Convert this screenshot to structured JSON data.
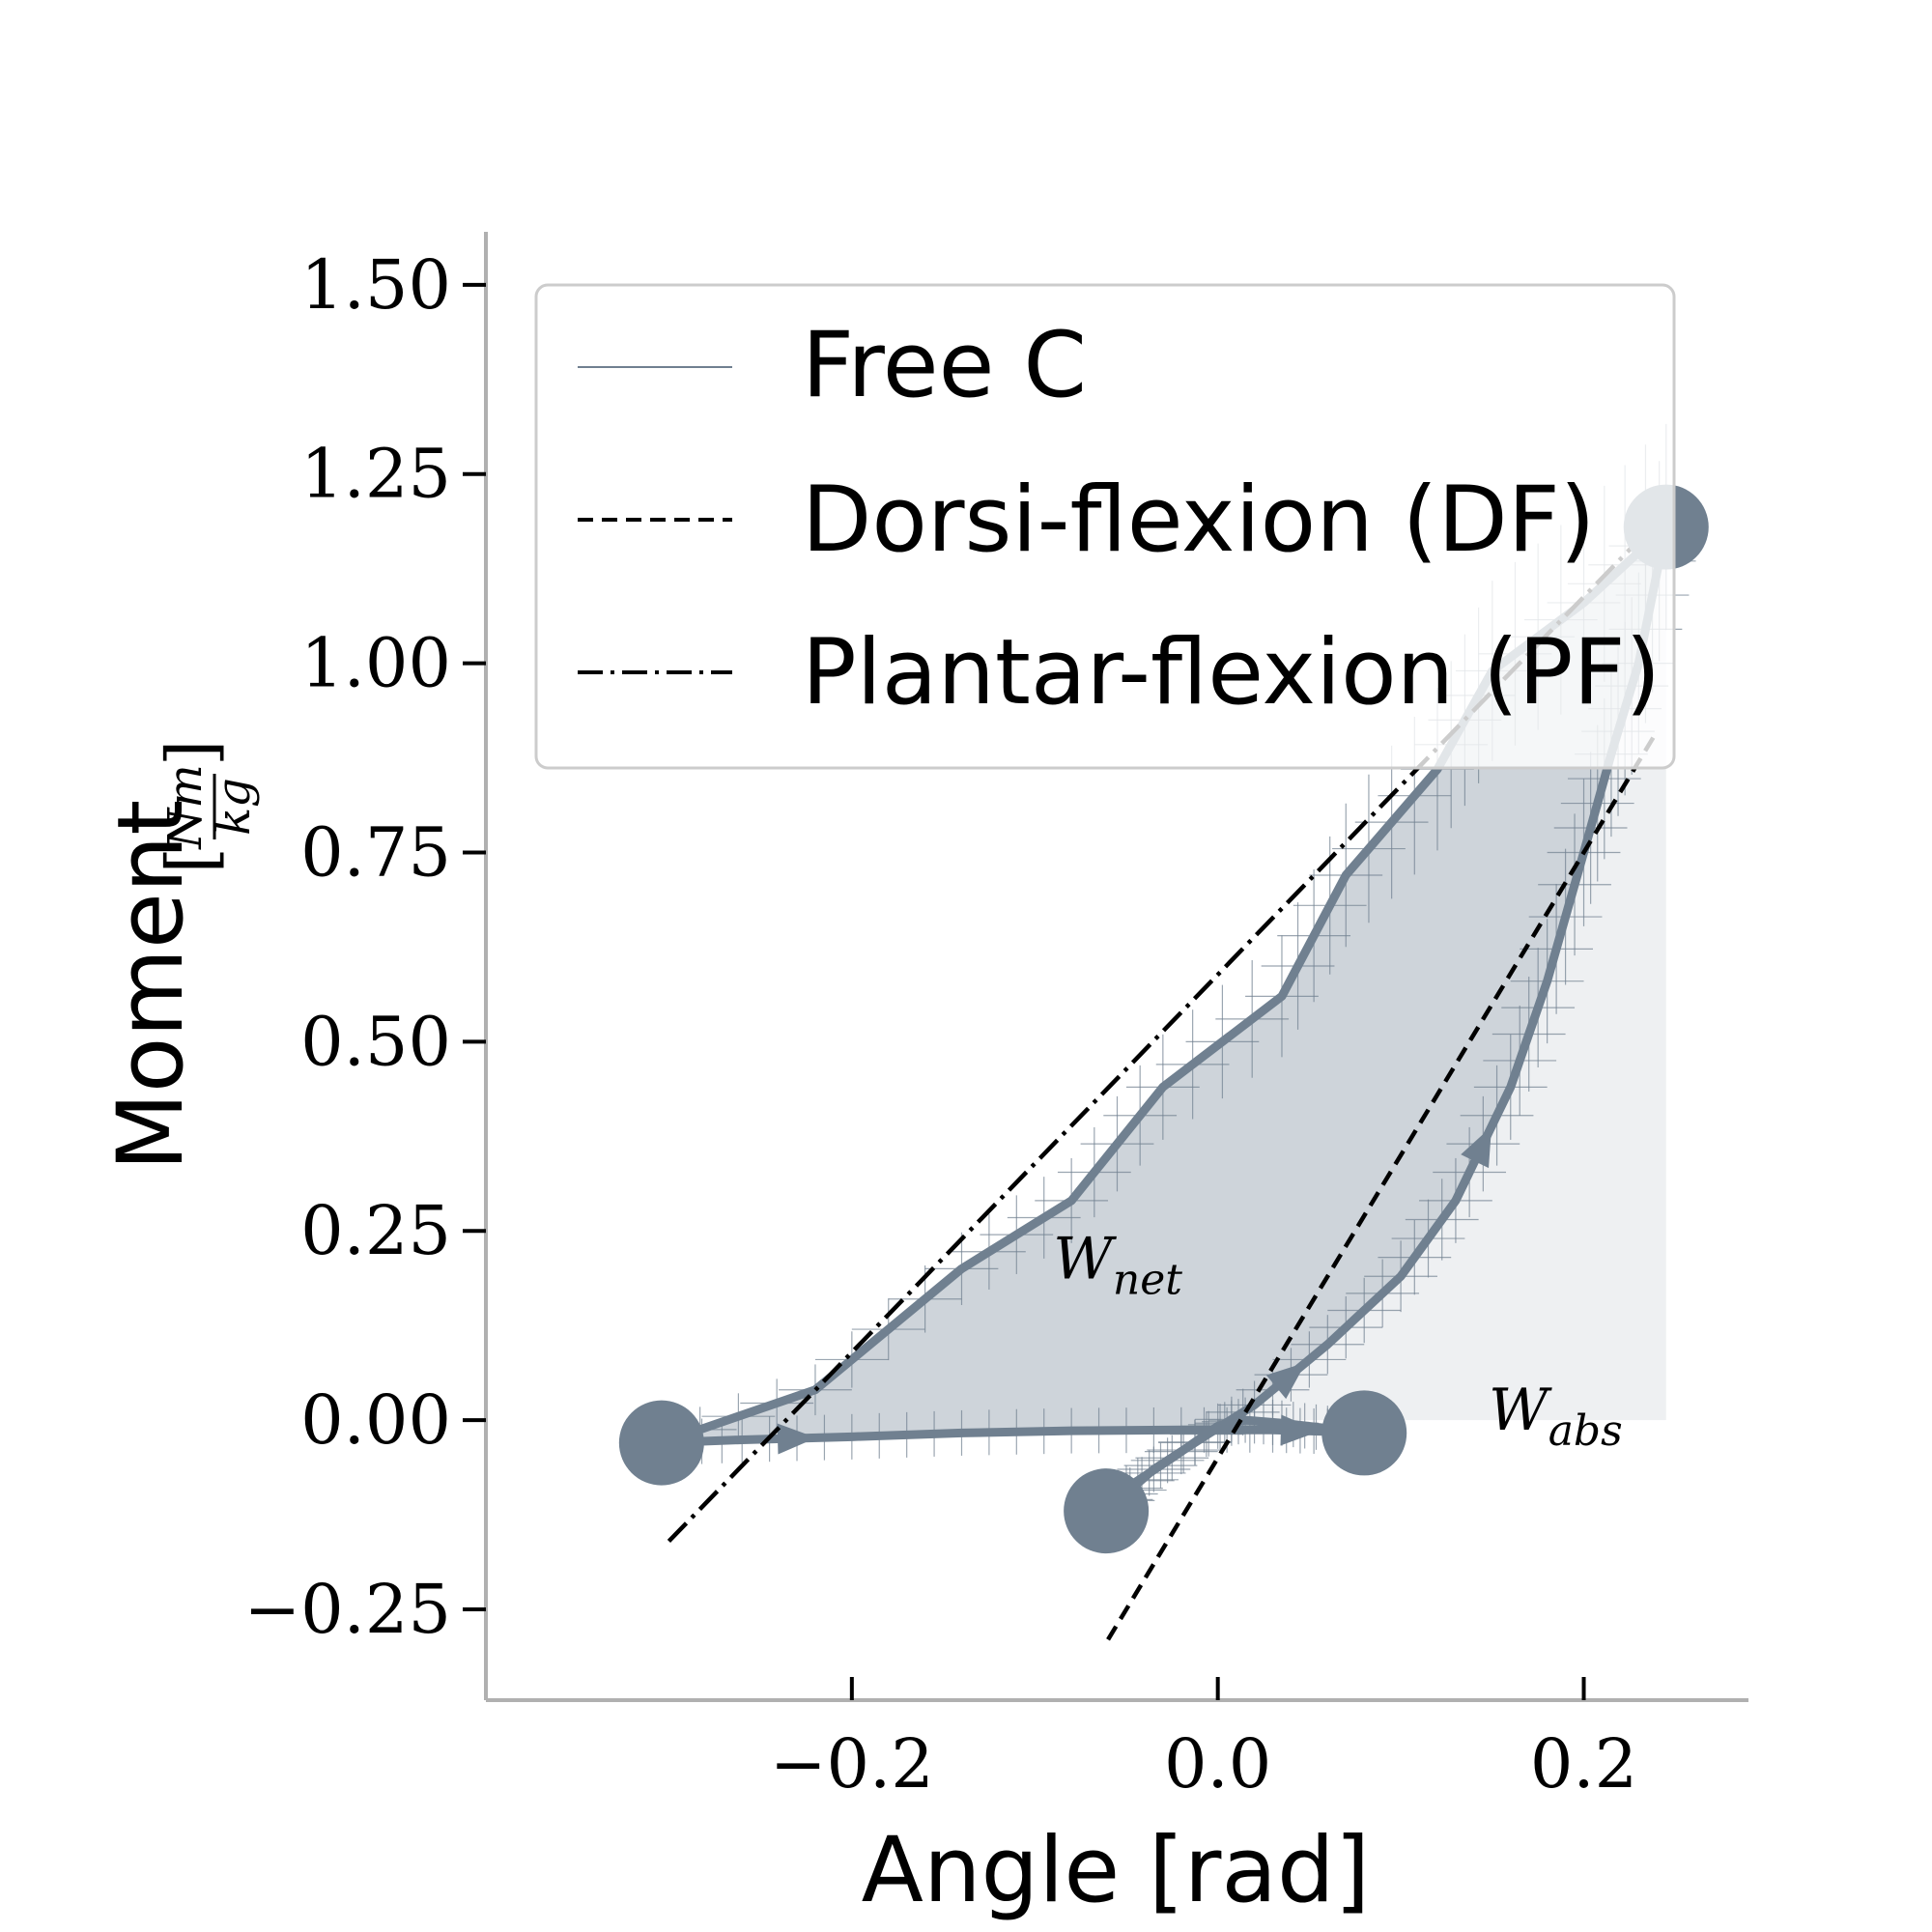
{
  "colors": {
    "series": "#708090",
    "fill_net": "#c5ccd4",
    "fill_abs": "#eef0f2",
    "axis": "#b0b0b0",
    "line": "#000000"
  },
  "chart_data": {
    "type": "line",
    "xlabel": "Angle [rad]",
    "ylabel_main": "Moment",
    "ylabel_unit_num": "Nm",
    "ylabel_unit_den": "kg",
    "xlim": [
      -0.4,
      0.29
    ],
    "ylim": [
      -0.37,
      1.57
    ],
    "xticks": [
      -0.2,
      0.0,
      0.2
    ],
    "xtick_labels": [
      "−0.2",
      "0.0",
      "0.2"
    ],
    "yticks": [
      -0.25,
      0.0,
      0.25,
      0.5,
      0.75,
      1.0,
      1.25,
      1.5
    ],
    "ytick_labels": [
      "−0.25",
      "0.00",
      "0.25",
      "0.50",
      "0.75",
      "1.00",
      "1.25",
      "1.50"
    ],
    "grid": false,
    "legend": {
      "placement": "top-right",
      "entries": [
        {
          "label": "Free C",
          "style": "solid-thin"
        },
        {
          "label": "Dorsi-flexion (DF)",
          "style": "dashed"
        },
        {
          "label": "Plantar-flexion (PF)",
          "style": "dashdot"
        }
      ]
    },
    "annotations": [
      {
        "base": "W",
        "sub": "net",
        "x": -0.09,
        "y": 0.2
      },
      {
        "base": "W",
        "sub": "abs",
        "x": 0.148,
        "y": 0.0
      }
    ],
    "series": [
      {
        "name": "Free C",
        "loop": [
          [
            -0.304,
            -0.03
          ],
          [
            -0.26,
            -0.026
          ],
          [
            -0.2,
            -0.022
          ],
          [
            -0.14,
            -0.017
          ],
          [
            -0.08,
            -0.014
          ],
          [
            -0.02,
            -0.013
          ],
          [
            0.03,
            -0.013
          ],
          [
            0.06,
            -0.015
          ],
          [
            0.08,
            -0.017
          ],
          [
            0.06,
            -0.011
          ],
          [
            0.035,
            -0.004
          ],
          [
            0.015,
            0.0
          ],
          [
            0.0,
            -0.008
          ],
          [
            -0.025,
            -0.05
          ],
          [
            -0.05,
            -0.09
          ],
          [
            -0.061,
            -0.12
          ],
          [
            -0.035,
            -0.065
          ],
          [
            -0.005,
            -0.018
          ],
          [
            0.02,
            0.02
          ],
          [
            0.06,
            0.1
          ],
          [
            0.1,
            0.19
          ],
          [
            0.13,
            0.29
          ],
          [
            0.16,
            0.44
          ],
          [
            0.18,
            0.58
          ],
          [
            0.2,
            0.75
          ],
          [
            0.215,
            0.88
          ],
          [
            0.23,
            1.0
          ],
          [
            0.245,
            1.18
          ],
          [
            0.2,
            1.08
          ],
          [
            0.15,
            0.99
          ],
          [
            0.12,
            0.86
          ],
          [
            0.07,
            0.72
          ],
          [
            0.035,
            0.56
          ],
          [
            -0.03,
            0.44
          ],
          [
            -0.08,
            0.29
          ],
          [
            -0.14,
            0.2
          ],
          [
            -0.22,
            0.04
          ],
          [
            -0.304,
            -0.03
          ]
        ],
        "key_points": [
          [
            -0.304,
            -0.03
          ],
          [
            0.08,
            -0.017
          ],
          [
            -0.061,
            -0.12
          ],
          [
            0.245,
            1.18
          ]
        ]
      },
      {
        "name": "Dorsi-flexion (DF)",
        "line": [
          [
            -0.06,
            -0.29
          ],
          [
            0.24,
            0.91
          ]
        ]
      },
      {
        "name": "Plantar-flexion (PF)",
        "line": [
          [
            -0.3,
            -0.16
          ],
          [
            0.245,
            1.2
          ]
        ]
      }
    ]
  }
}
